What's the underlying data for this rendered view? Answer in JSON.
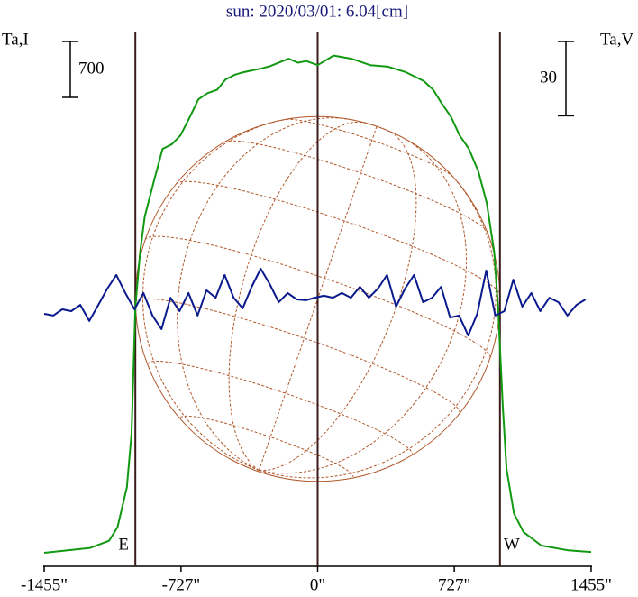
{
  "chart_data": {
    "type": "line",
    "title": "sun: 2020/03/01: 6.04[cm]",
    "ylabel": "Ta,I",
    "y2label": "Ta,V",
    "xlim": [
      -1460,
      1460
    ],
    "xticks": [
      {
        "value": -1455,
        "label": "-1455\""
      },
      {
        "value": -727,
        "label": "-727\""
      },
      {
        "value": 0,
        "label": "0\""
      },
      {
        "value": 727,
        "label": "727\""
      },
      {
        "value": 1455,
        "label": "1455\""
      }
    ],
    "ylim": [
      0,
      6700
    ],
    "y2lim": [
      -108,
      108
    ],
    "scale_bars": [
      {
        "value": 700,
        "axis": "y"
      },
      {
        "value": 30,
        "axis": "y2"
      }
    ],
    "vlines": [
      {
        "value": -970,
        "label": "E"
      },
      {
        "value": 0
      },
      {
        "value": 970,
        "label": "W"
      }
    ],
    "series": [
      {
        "color": "#119911",
        "axis": "y",
        "x": [
          -1455,
          -1210,
          -1110,
          -1065,
          -1015,
          -990,
          -970,
          -945,
          -920,
          -870,
          -825,
          -775,
          -730,
          -680,
          -635,
          -585,
          -535,
          -490,
          -440,
          -395,
          -295,
          -250,
          -155,
          -105,
          -60,
          0,
          85,
          180,
          280,
          375,
          470,
          565,
          615,
          660,
          710,
          755,
          805,
          855,
          900,
          940,
          960,
          985,
          1005,
          1045,
          1095,
          1190,
          1335,
          1455
        ],
        "values": [
          170,
          230,
          320,
          490,
          990,
          1670,
          3250,
          3930,
          4380,
          4840,
          5230,
          5290,
          5400,
          5630,
          5850,
          5930,
          5970,
          6100,
          6160,
          6190,
          6240,
          6270,
          6360,
          6310,
          6330,
          6280,
          6400,
          6360,
          6280,
          6260,
          6190,
          6080,
          5970,
          5800,
          5630,
          5400,
          5230,
          4950,
          4550,
          3930,
          3250,
          2010,
          1220,
          660,
          430,
          260,
          200,
          180
        ]
      },
      {
        "color": "#0a1a8c",
        "axis": "y2",
        "x": [
          -1455,
          -1407,
          -1359,
          -1311,
          -1263,
          -1215,
          -1167,
          -1119,
          -1071,
          -1023,
          -975,
          -927,
          -879,
          -831,
          -783,
          -735,
          -687,
          -639,
          -591,
          -543,
          -495,
          -447,
          -399,
          -351,
          -303,
          -255,
          -207,
          -159,
          -111,
          -63,
          -15,
          33,
          81,
          129,
          177,
          225,
          273,
          321,
          369,
          417,
          465,
          513,
          561,
          609,
          657,
          705,
          753,
          801,
          849,
          897,
          945,
          993,
          1041,
          1089,
          1137,
          1185,
          1233,
          1281,
          1329,
          1377,
          1425
        ],
        "values": [
          -6.0,
          -6.7,
          -4.2,
          -4.9,
          -2.4,
          -8.9,
          -2.4,
          4.2,
          9.7,
          2.4,
          -4.2,
          2.4,
          -6.7,
          -12.2,
          0.5,
          -4.9,
          2.4,
          -6.7,
          3.5,
          0.5,
          9.7,
          0.5,
          -3.8,
          4.9,
          12.2,
          6.0,
          -1.3,
          2.4,
          -0.2,
          -0.5,
          0.5,
          1.3,
          0.5,
          2.4,
          0.5,
          4.9,
          0.5,
          4.2,
          9.7,
          -3.1,
          4.2,
          9.7,
          -1.3,
          0.5,
          4.9,
          -7.5,
          -6.7,
          -14.8,
          -6.0,
          11.5,
          -6.7,
          -4.9,
          7.8,
          -3.1,
          2.4,
          -4.9,
          0.5,
          -1.3,
          -6.7,
          -2.4,
          -0.2
        ]
      }
    ]
  }
}
